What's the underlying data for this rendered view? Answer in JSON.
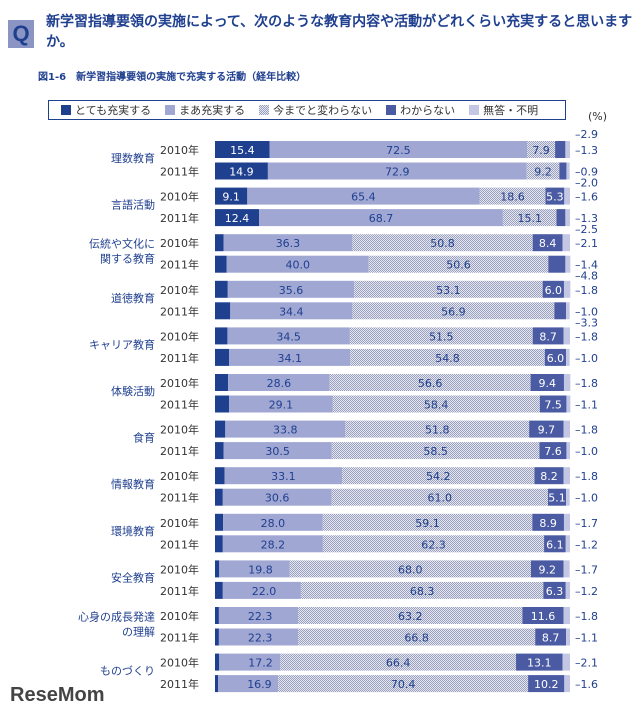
{
  "header": {
    "q_mark": "Q",
    "question": "新学習指導要領の実施によって、次のような教育内容や活動がどれくらい充実すると思いますか。",
    "figure_title": "図1-6　新学習指導要領の実施で充実する活動（経年比較）",
    "unit": "(%)",
    "watermark": "ReseMom"
  },
  "chart_data": {
    "type": "bar",
    "orientation": "horizontal",
    "stacked": true,
    "xlim": [
      0,
      100
    ],
    "legend": [
      {
        "name": "とても充実する",
        "color": "#1f3f8f"
      },
      {
        "name": "まあ充実する",
        "color": "#a0a7d3"
      },
      {
        "name": "今までと変わらない",
        "color": "#d4d7e6",
        "pattern": "checker"
      },
      {
        "name": "わからない",
        "color": "#4b5ba3"
      },
      {
        "name": "無答・不明",
        "color": "#c3c7e3"
      }
    ],
    "categories": [
      "理数教育",
      "言語活動",
      "伝統や文化に関する教育",
      "道徳教育",
      "キャリア教育",
      "体験活動",
      "食育",
      "情報教育",
      "環境教育",
      "安全教育",
      "心身の成長発達の理解",
      "ものづくり"
    ],
    "years": [
      "2010年",
      "2011年"
    ],
    "values": [
      [
        [
          15.4,
          72.5,
          7.9,
          2.9,
          1.3
        ],
        [
          14.9,
          72.9,
          9.2,
          2.0,
          0.9
        ]
      ],
      [
        [
          9.1,
          65.4,
          18.6,
          5.3,
          1.6
        ],
        [
          12.4,
          68.7,
          15.1,
          2.5,
          1.3
        ]
      ],
      [
        [
          2.4,
          36.3,
          50.8,
          8.4,
          2.1
        ],
        [
          3.3,
          40.0,
          50.6,
          4.8,
          1.4
        ]
      ],
      [
        [
          3.6,
          35.6,
          53.1,
          6.0,
          1.8
        ],
        [
          4.3,
          34.4,
          56.9,
          3.3,
          1.0
        ]
      ],
      [
        [
          3.5,
          34.5,
          51.5,
          8.7,
          1.8
        ],
        [
          4.0,
          34.1,
          54.8,
          6.0,
          1.0
        ]
      ],
      [
        [
          3.7,
          28.6,
          56.6,
          9.4,
          1.8
        ],
        [
          4.0,
          29.1,
          58.4,
          7.5,
          1.1
        ]
      ],
      [
        [
          2.9,
          33.8,
          51.8,
          9.7,
          1.8
        ],
        [
          2.4,
          30.5,
          58.5,
          7.6,
          1.0
        ]
      ],
      [
        [
          2.7,
          33.1,
          54.2,
          8.2,
          1.8
        ],
        [
          2.2,
          30.6,
          61.0,
          5.1,
          1.0
        ]
      ],
      [
        [
          2.3,
          28.0,
          59.1,
          8.9,
          1.7
        ],
        [
          2.2,
          28.2,
          62.3,
          6.1,
          1.2
        ]
      ],
      [
        [
          1.2,
          19.8,
          68.0,
          9.2,
          1.7
        ],
        [
          2.2,
          22.0,
          68.3,
          6.3,
          1.2
        ]
      ],
      [
        [
          1.1,
          22.3,
          63.2,
          11.6,
          1.8
        ],
        [
          1.1,
          22.3,
          66.8,
          8.7,
          1.1
        ]
      ],
      [
        [
          1.2,
          17.2,
          66.4,
          13.1,
          2.1
        ],
        [
          0.9,
          16.9,
          70.4,
          10.2,
          1.6
        ]
      ]
    ]
  }
}
